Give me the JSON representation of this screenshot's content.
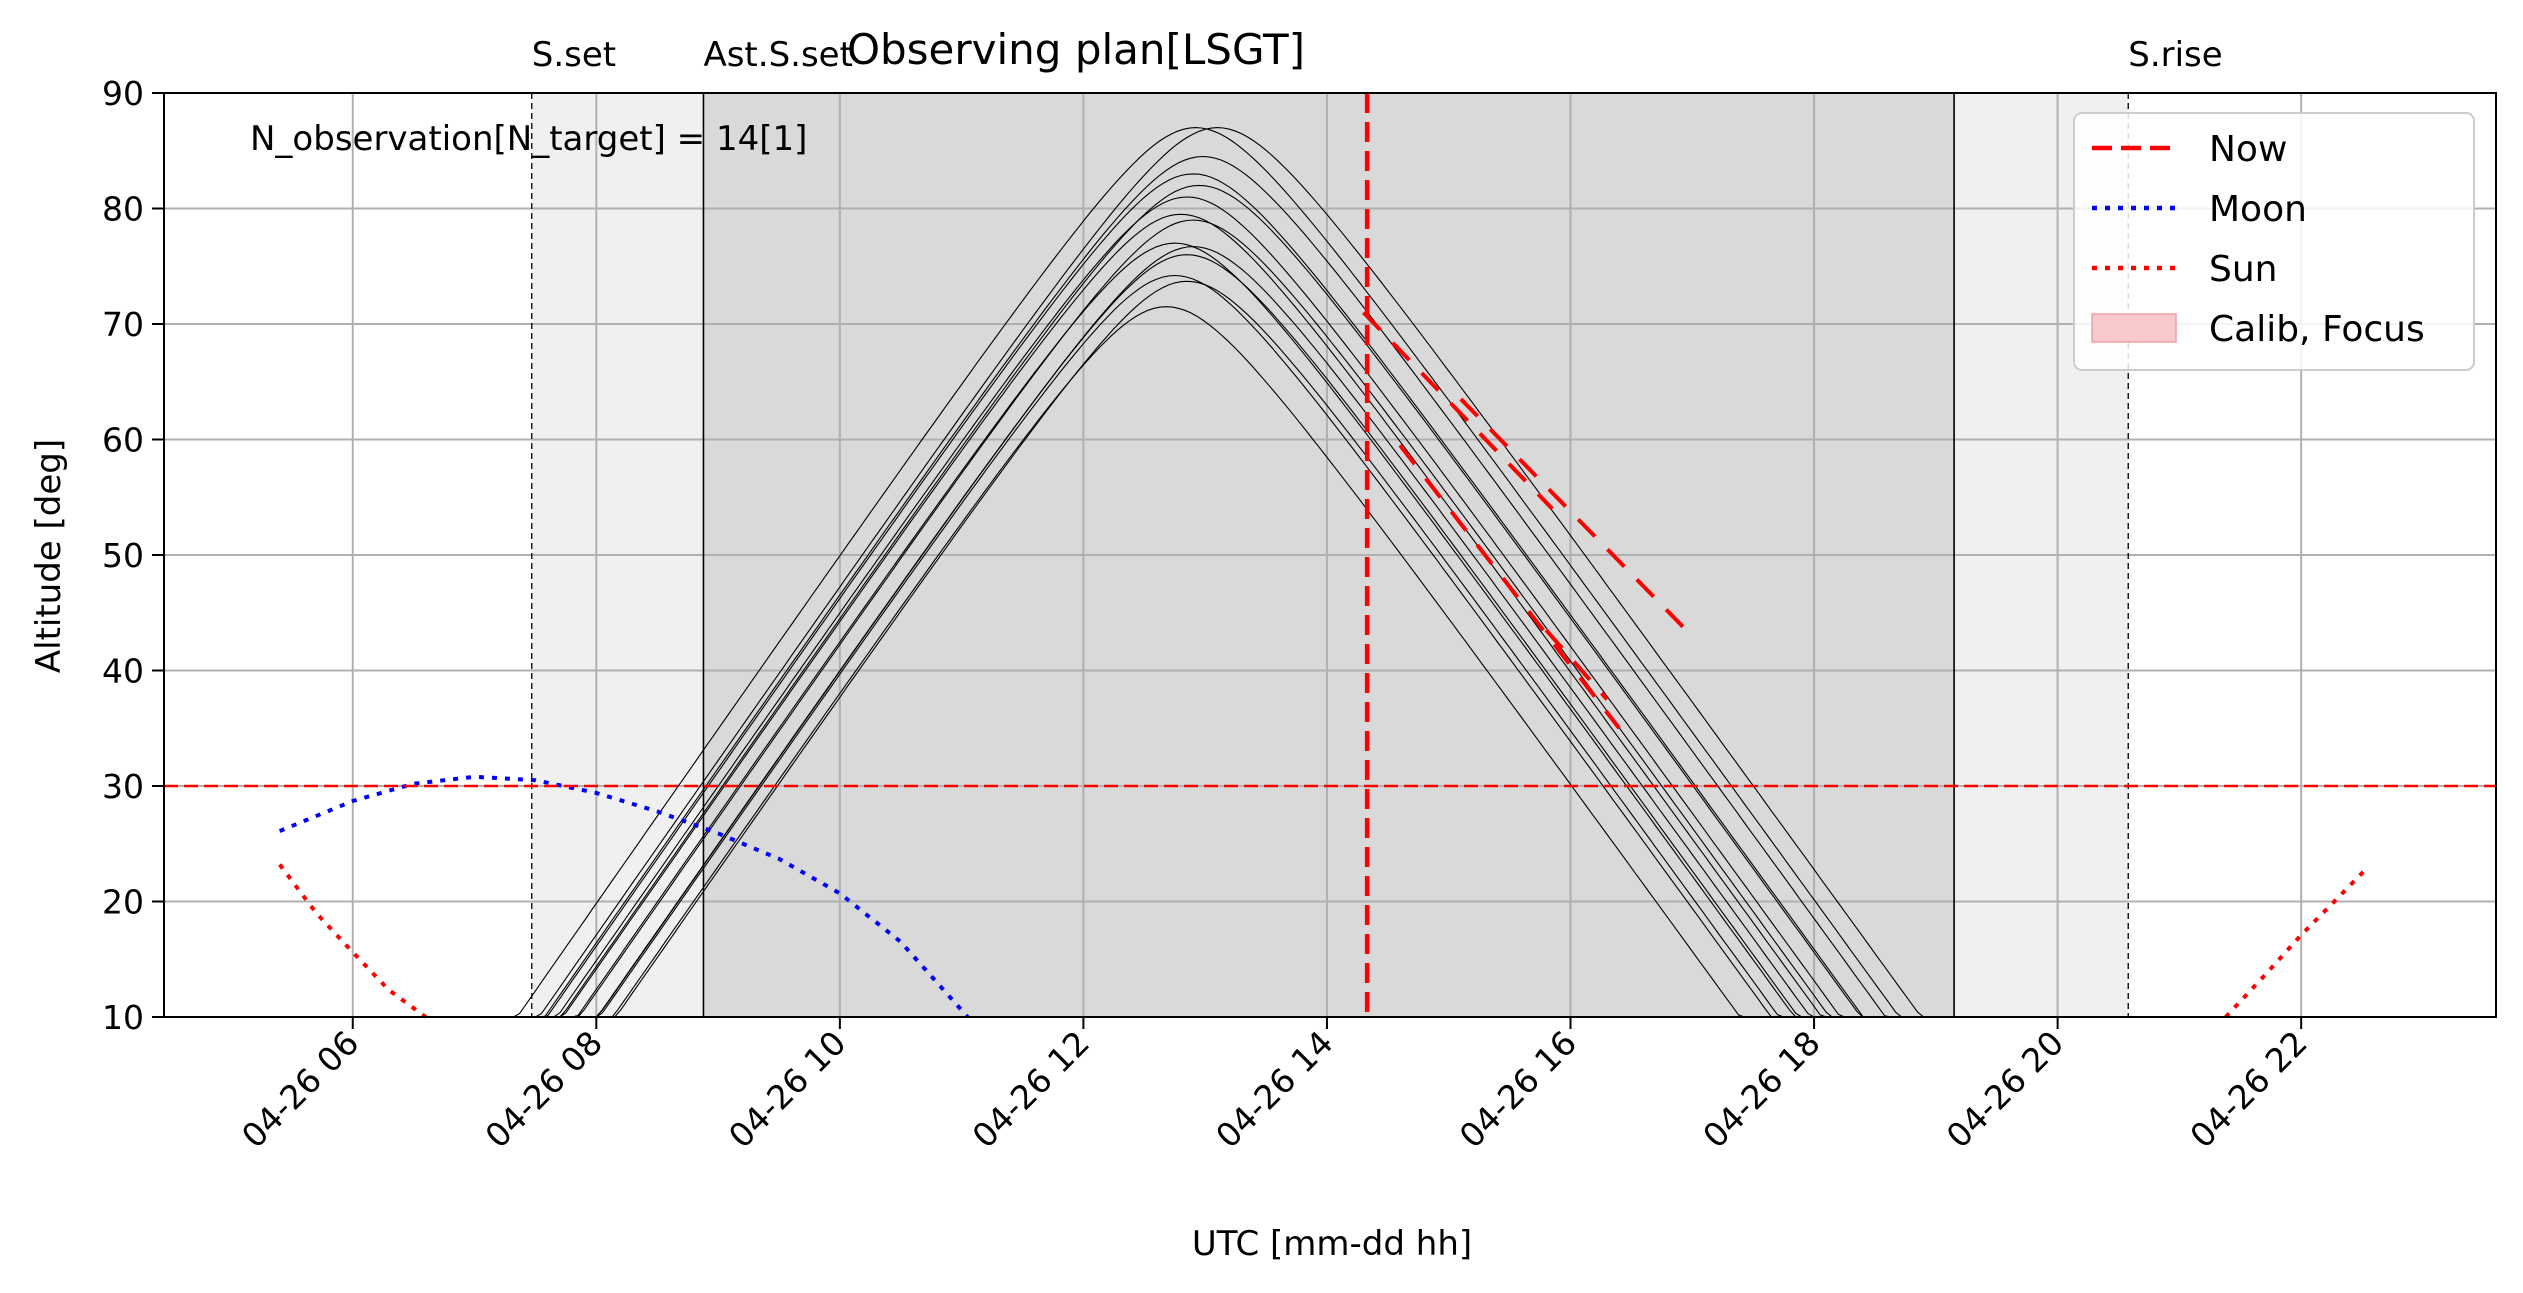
{
  "chart_data": {
    "type": "line",
    "title": "Observing plan[LSGT]",
    "xlabel": "UTC [mm-dd hh]",
    "ylabel": "Altitude [deg]",
    "xlim": [
      4.45,
      23.6
    ],
    "ylim": [
      10,
      90
    ],
    "x_unit": "hour of 04-26 (UTC)",
    "x_ticks": [
      {
        "value": 6,
        "label": "04-26 06"
      },
      {
        "value": 8,
        "label": "04-26 08"
      },
      {
        "value": 10,
        "label": "04-26 10"
      },
      {
        "value": 12,
        "label": "04-26 12"
      },
      {
        "value": 14,
        "label": "04-26 14"
      },
      {
        "value": 16,
        "label": "04-26 16"
      },
      {
        "value": 18,
        "label": "04-26 18"
      },
      {
        "value": 20,
        "label": "04-26 20"
      },
      {
        "value": 22,
        "label": "04-26 22"
      }
    ],
    "y_ticks": [
      10,
      20,
      30,
      40,
      50,
      60,
      70,
      80,
      90
    ],
    "grid": true,
    "annotation": "N_observation[N_target] = 14[1]",
    "events": [
      {
        "label": "S.set",
        "x": 7.47,
        "style": "dashed"
      },
      {
        "label": "Ast.S.set",
        "x": 8.88,
        "style": "solid"
      },
      {
        "label": "",
        "x": 19.15,
        "style": "solid"
      },
      {
        "label": "S.rise",
        "x": 20.58,
        "style": "dashed"
      }
    ],
    "twilight_bands": [
      {
        "x": [
          7.47,
          8.88
        ],
        "shade": "light",
        "color": "#f0f0f0"
      },
      {
        "x": [
          8.88,
          19.15
        ],
        "shade": "dark",
        "color": "#d9d9d9"
      },
      {
        "x": [
          19.15,
          20.58
        ],
        "shade": "light",
        "color": "#f0f0f0"
      }
    ],
    "altitude_limit": 30,
    "now": 14.33,
    "colors": {
      "now": "#ff0000",
      "moon": "#0000ff",
      "sun": "#ff0000",
      "target": "#000000",
      "observed": "#ff0000",
      "calib": "#f8c9cc"
    },
    "series": [
      {
        "name": "Moon",
        "style": "dotted",
        "x": [
          5.4,
          6.0,
          6.5,
          7.0,
          7.5,
          8.0,
          8.5,
          9.0,
          9.5,
          10.0,
          10.5,
          11.05
        ],
        "y": [
          26.1,
          28.7,
          30.2,
          30.8,
          30.5,
          29.4,
          27.8,
          25.9,
          23.7,
          20.7,
          16.5,
          10.0
        ]
      },
      {
        "name": "Sun",
        "style": "dotted",
        "x": [
          5.4,
          5.7,
          6.0,
          6.3,
          6.6
        ],
        "y": [
          23.2,
          19.0,
          15.6,
          12.3,
          10.0
        ]
      },
      {
        "name": "Sun",
        "style": "dotted",
        "x": [
          21.38,
          21.7,
          22.0,
          22.3,
          22.55
        ],
        "y": [
          10.0,
          13.6,
          17.1,
          20.3,
          23.0
        ]
      }
    ],
    "targets": [
      {
        "peak_x": 12.92,
        "peak_y": 87.0
      },
      {
        "peak_x": 13.1,
        "peak_y": 87.0
      },
      {
        "peak_x": 12.98,
        "peak_y": 84.5
      },
      {
        "peak_x": 12.9,
        "peak_y": 83.0
      },
      {
        "peak_x": 12.95,
        "peak_y": 82.0
      },
      {
        "peak_x": 12.85,
        "peak_y": 81.0
      },
      {
        "peak_x": 12.8,
        "peak_y": 79.5
      },
      {
        "peak_x": 12.9,
        "peak_y": 79.0
      },
      {
        "peak_x": 12.75,
        "peak_y": 77.0
      },
      {
        "peak_x": 12.9,
        "peak_y": 76.7
      },
      {
        "peak_x": 12.85,
        "peak_y": 76.0
      },
      {
        "peak_x": 12.75,
        "peak_y": 74.2
      },
      {
        "peak_x": 12.85,
        "peak_y": 73.7
      },
      {
        "peak_x": 12.68,
        "peak_y": 71.5
      }
    ],
    "observed_segments": [
      {
        "x": [
          14.3,
          15.85
        ],
        "y": [
          71.0,
          54.0
        ]
      },
      {
        "x": [
          15.1,
          16.95
        ],
        "y": [
          63.5,
          43.5
        ]
      },
      {
        "x": [
          14.6,
          16.4
        ],
        "y": [
          59.5,
          35.0
        ]
      },
      {
        "x": [
          15.8,
          16.3
        ],
        "y": [
          43.5,
          37.5
        ]
      }
    ],
    "legend": {
      "position": "top-right",
      "entries": [
        {
          "label": "Now",
          "style": "dashed",
          "color": "#ff0000"
        },
        {
          "label": "Moon",
          "style": "dotted",
          "color": "#0000ff"
        },
        {
          "label": "Sun",
          "style": "dotted",
          "color": "#ff0000"
        },
        {
          "label": "Calib, Focus",
          "style": "patch",
          "color": "#f8c9cc"
        }
      ]
    }
  }
}
